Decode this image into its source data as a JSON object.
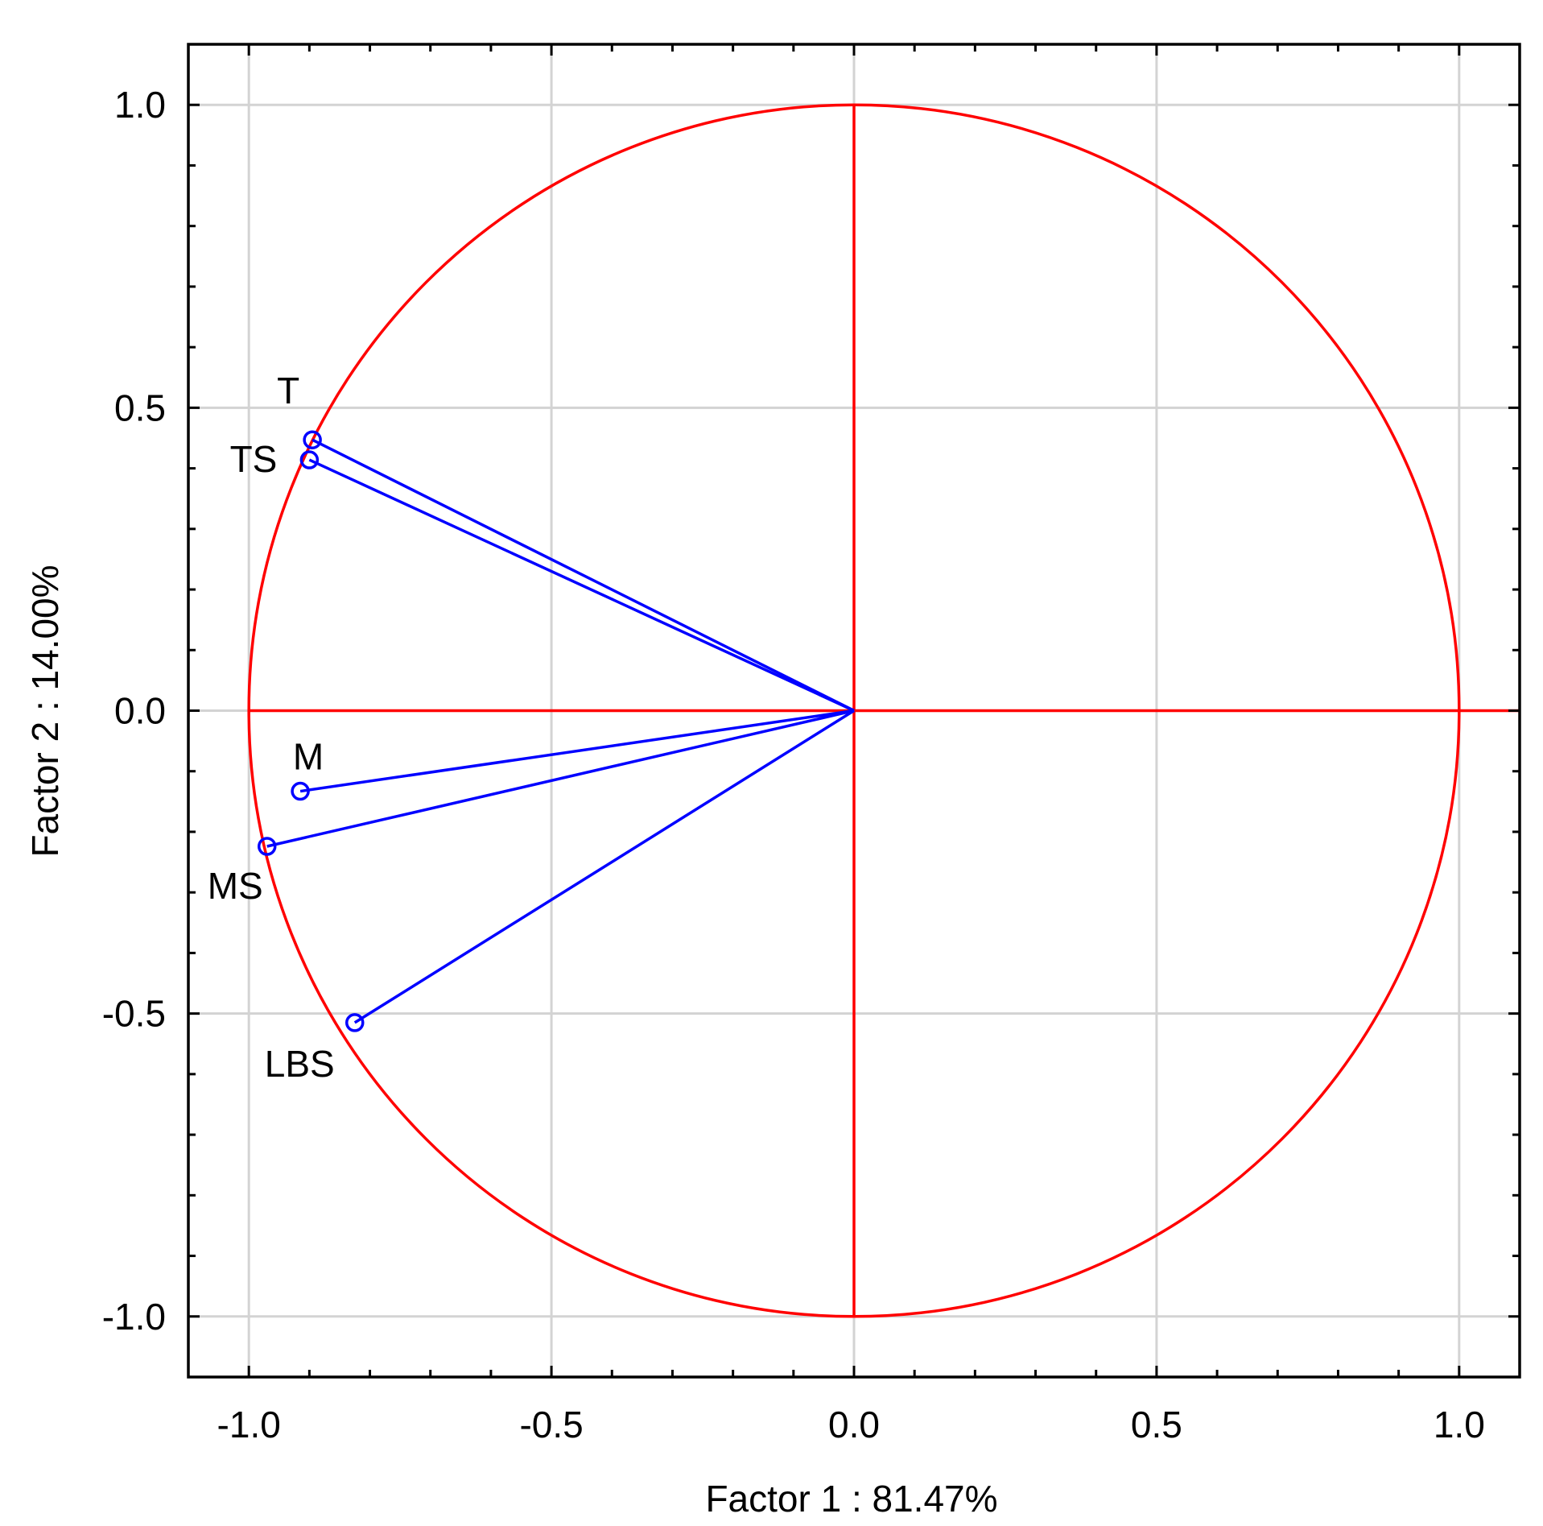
{
  "chart_data": {
    "type": "scatter",
    "title": "",
    "xlabel": "Factor 1 : 81.47%",
    "ylabel": "Factor 2 : 14.00%",
    "xlim": [
      -1.1,
      1.1
    ],
    "ylim": [
      -1.1,
      1.1
    ],
    "grid": true,
    "x_ticks": [
      {
        "value": -1.0,
        "label": "-1.0"
      },
      {
        "value": -0.5,
        "label": "-0.5"
      },
      {
        "value": 0.0,
        "label": "0.0"
      },
      {
        "value": 0.5,
        "label": "0.5"
      },
      {
        "value": 1.0,
        "label": "1.0"
      }
    ],
    "y_ticks": [
      {
        "value": 1.0,
        "label": "1.0"
      },
      {
        "value": 0.5,
        "label": "0.5"
      },
      {
        "value": 0.0,
        "label": "0.0"
      },
      {
        "value": -0.5,
        "label": "-0.5"
      },
      {
        "value": -1.0,
        "label": "-1.0"
      }
    ],
    "unit_circle": true,
    "points": [
      {
        "label": "T",
        "x": -0.895,
        "y": 0.447
      },
      {
        "label": "TS",
        "x": -0.9,
        "y": 0.414
      },
      {
        "label": "M",
        "x": -0.915,
        "y": -0.133
      },
      {
        "label": "MS",
        "x": -0.97,
        "y": -0.224
      },
      {
        "label": "LBS",
        "x": -0.825,
        "y": -0.515
      }
    ],
    "colors": {
      "circle": "#ff0000",
      "vectors": "#0000ff",
      "grid": "#d3d3d3",
      "frame": "#000000"
    }
  }
}
